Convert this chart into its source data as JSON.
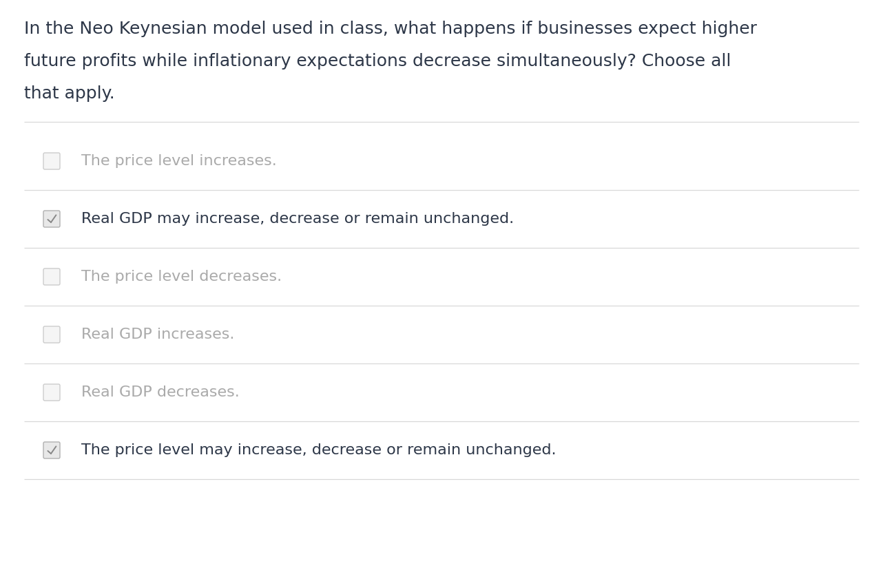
{
  "background_color": "#ffffff",
  "question_lines": [
    "In the Neo Keynesian model used in class, what happens if businesses expect higher",
    "future profits while inflationary expectations decrease simultaneously? Choose all",
    "that apply."
  ],
  "question_font_size": 18,
  "question_color": "#2d3748",
  "options": [
    {
      "text": "The price level increases.",
      "checked": false,
      "selected": false
    },
    {
      "text": "Real GDP may increase, decrease or remain unchanged.",
      "checked": true,
      "selected": true
    },
    {
      "text": "The price level decreases.",
      "checked": false,
      "selected": false
    },
    {
      "text": "Real GDP increases.",
      "checked": false,
      "selected": false
    },
    {
      "text": "Real GDP decreases.",
      "checked": false,
      "selected": false
    },
    {
      "text": "The price level may increase, decrease or remain unchanged.",
      "checked": true,
      "selected": true
    }
  ],
  "divider_color": "#d8d8d8",
  "checkbox_color_unchecked_edge": "#cccccc",
  "checkbox_color_unchecked_face": "#f5f5f5",
  "checkbox_color_checked_edge": "#b0b0b0",
  "checkbox_color_checked_face": "#e8e8e8",
  "checkmark_color": "#888888",
  "text_color_unchecked": "#aaaaaa",
  "text_color_checked": "#2d3748",
  "option_font_size": 16
}
